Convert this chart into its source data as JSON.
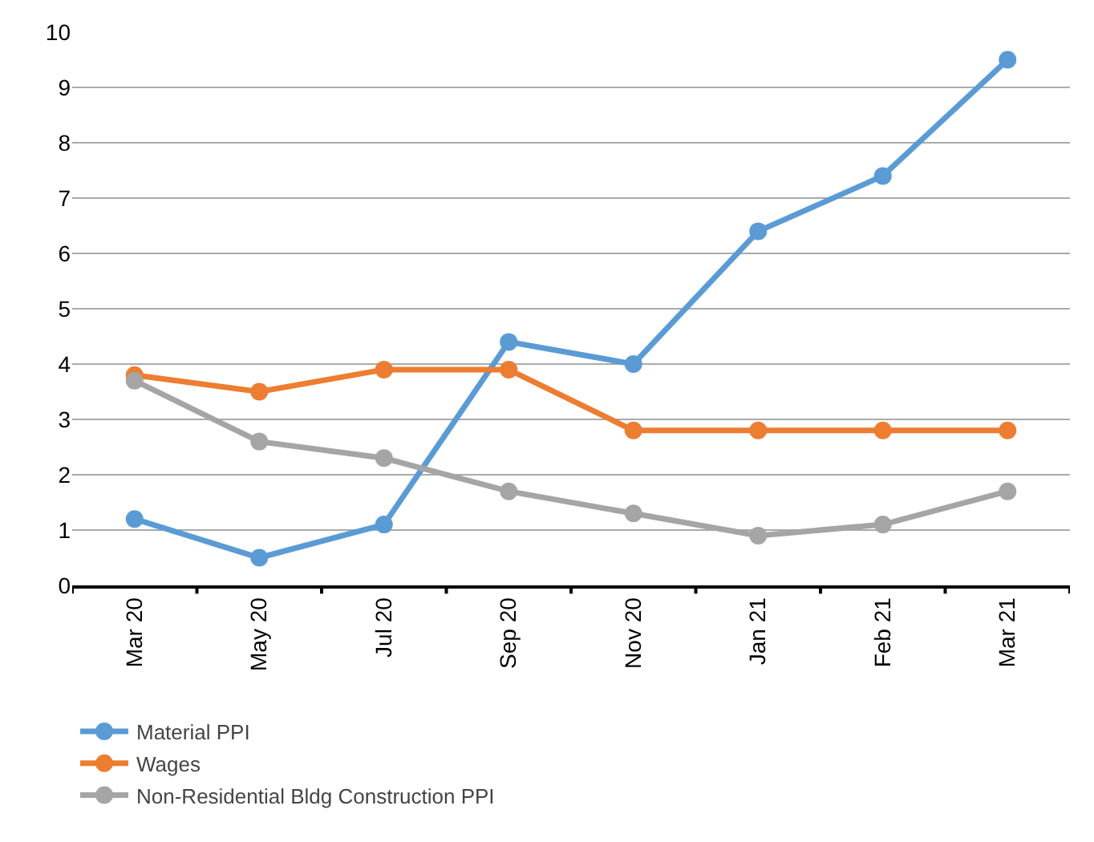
{
  "chart_data": {
    "type": "line",
    "categories": [
      "Mar 20",
      "May 20",
      "Jul 20",
      "Sep 20",
      "Nov 20",
      "Jan 21",
      "Feb 21",
      "Mar 21"
    ],
    "series": [
      {
        "name": "Material PPI",
        "color": "#5b9bd5",
        "values": [
          1.2,
          0.5,
          1.1,
          4.4,
          4.0,
          6.4,
          7.4,
          9.5
        ]
      },
      {
        "name": "Wages",
        "color": "#ed7d31",
        "values": [
          3.8,
          3.5,
          3.9,
          3.9,
          2.8,
          2.8,
          2.8,
          2.8
        ]
      },
      {
        "name": "Non-Residential Bldg Construction PPI",
        "color": "#a5a5a5",
        "values": [
          3.7,
          2.6,
          2.3,
          1.7,
          1.3,
          0.9,
          1.1,
          1.7
        ]
      }
    ],
    "ylim": [
      0,
      10
    ],
    "yticks": [
      0,
      1,
      2,
      3,
      4,
      5,
      6,
      7,
      8,
      9,
      10
    ],
    "grid": "y",
    "legend": "bottom left",
    "marker": "circle",
    "line_style": "solid"
  }
}
